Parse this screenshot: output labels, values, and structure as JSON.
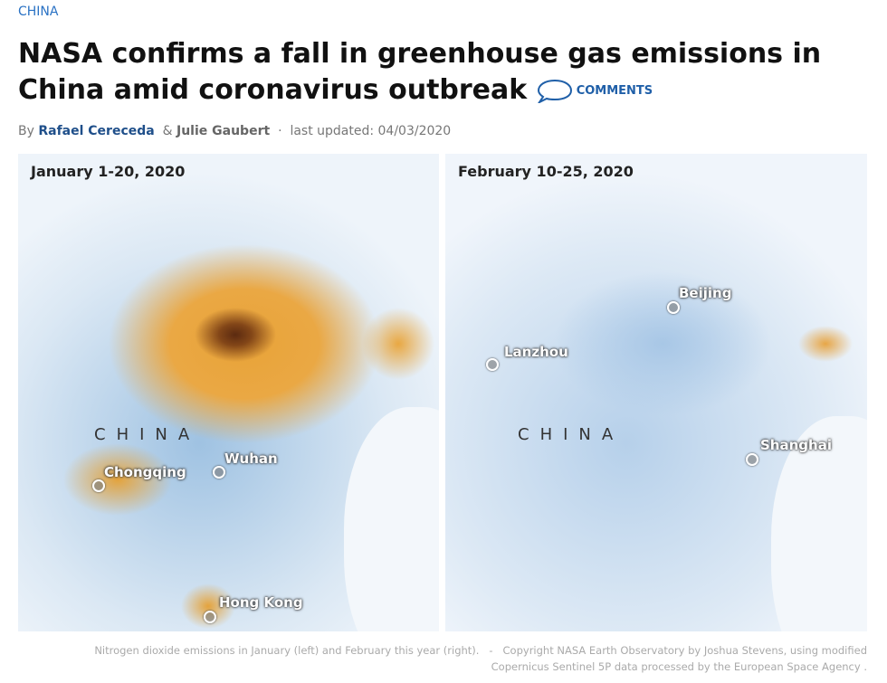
{
  "section": "CHINA",
  "headline": "NASA confirms a fall in greenhouse gas emissions in China amid coronavirus outbreak",
  "comments": "COMMENTS",
  "byline": {
    "prefix": "By",
    "authors": [
      "Rafael Cereceda",
      "Julie Gaubert"
    ],
    "separator": "&",
    "dot": "·",
    "updated": "last updated: 04/03/2020"
  },
  "maps": [
    {
      "title": "January 1-20, 2020",
      "country": "CHINA",
      "cities": [
        "Wuhan",
        "Chongqing",
        "Hong Kong"
      ]
    },
    {
      "title": "February 10-25, 2020",
      "country": "CHINA",
      "cities": [
        "Beijing",
        "Lanzhou",
        "Shanghai"
      ]
    }
  ],
  "caption": {
    "text": "Nitrogen dioxide emissions in January (left) and February this year (right).",
    "separator": "-",
    "credit": "Copyright  NASA Earth Observatory by Joshua Stevens, using modified Copernicus Sentinel 5P data processed by the European Space Agency ."
  }
}
